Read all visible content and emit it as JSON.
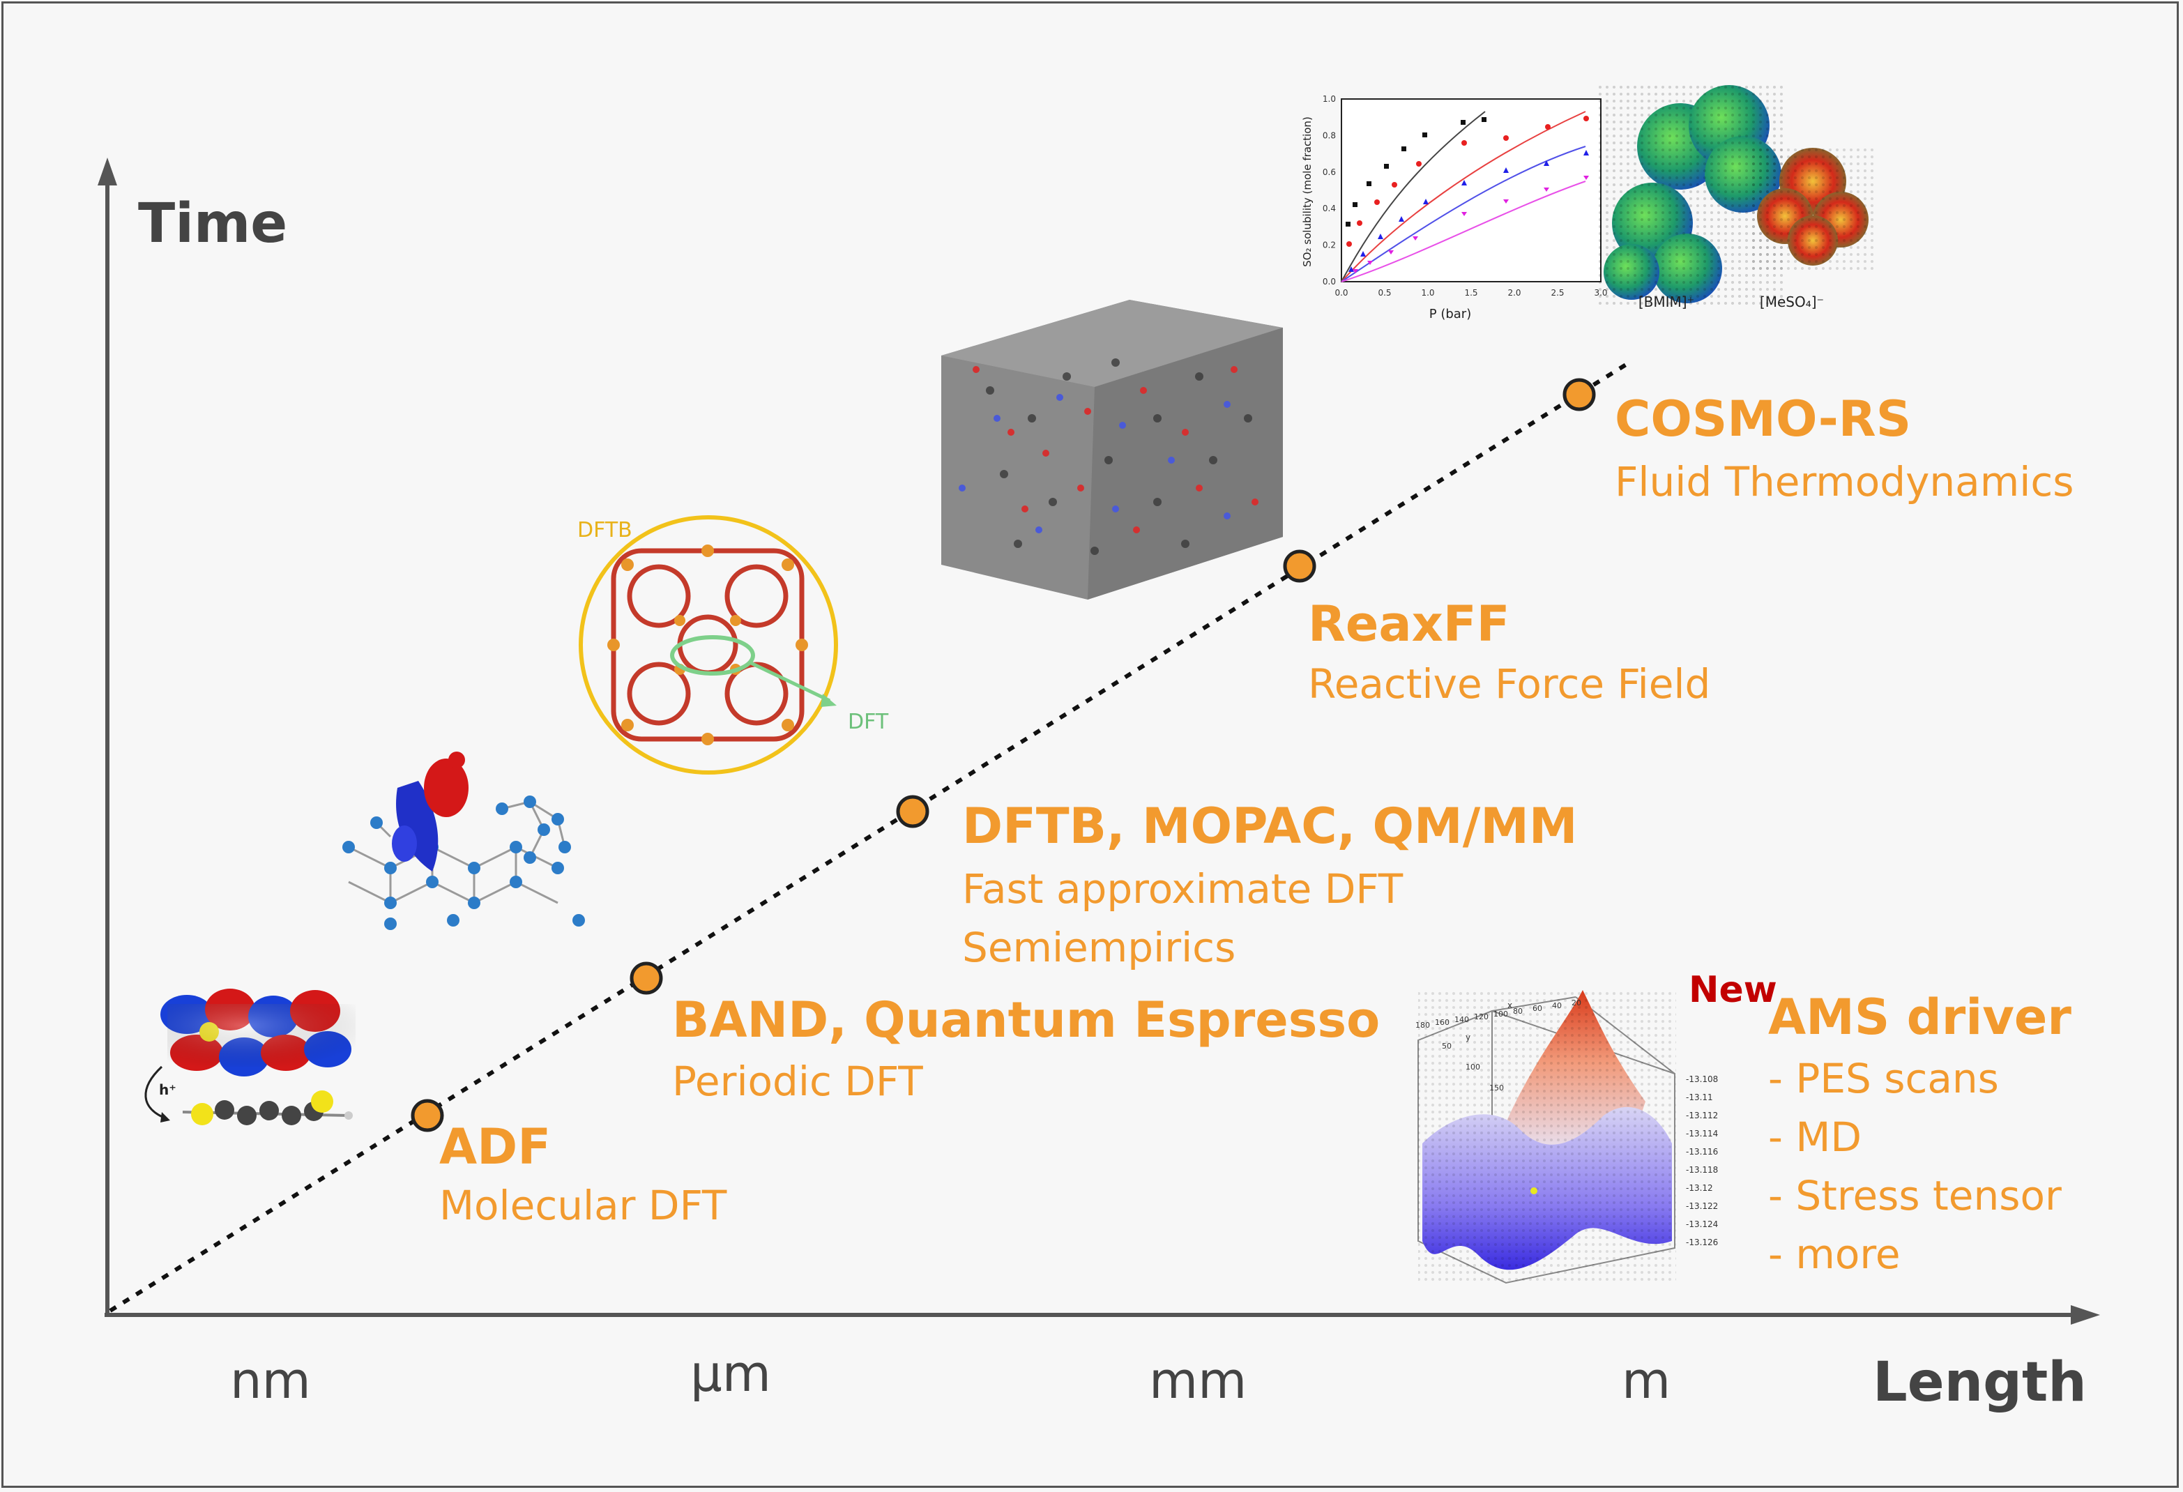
{
  "axes": {
    "y_title": "Time",
    "x_title": "Length",
    "x_ticks": [
      "nm",
      "µm",
      "mm",
      "m"
    ]
  },
  "methods": [
    {
      "name": "ADF",
      "desc": [
        "Molecular DFT"
      ]
    },
    {
      "name": "BAND, Quantum Espresso",
      "desc": [
        "Periodic DFT"
      ]
    },
    {
      "name": "DFTB, MOPAC, QM/MM",
      "desc": [
        "Fast approximate DFT",
        "Semiempirics"
      ]
    },
    {
      "name": "ReaxFF",
      "desc": [
        "Reactive Force Field"
      ]
    },
    {
      "name": "COSMO-RS",
      "desc": [
        "Fluid Thermodynamics"
      ]
    }
  ],
  "ams": {
    "new_tag": "New",
    "name": "AMS driver",
    "items": [
      "- PES scans",
      "- MD",
      "- Stress tensor",
      "- more"
    ]
  },
  "illustrations": {
    "excitation_label": "h⁺",
    "dftb_label": "DFTB",
    "dft_label": "DFT",
    "cosmo_plot": {
      "ylabel": "SO₂ solubility (mole fraction)",
      "xlabel": "P (bar)",
      "x_ticks": [
        "0.0",
        "0.5",
        "1.0",
        "1.5",
        "2.0",
        "2.5",
        "3.0"
      ],
      "y_ticks": [
        "0.0",
        "0.2",
        "0.4",
        "0.6",
        "0.8",
        "1.0"
      ],
      "molecule_labels": [
        "[BMIM]⁺",
        "[MeSO₄]⁻"
      ]
    },
    "pes_plot": {
      "z_ticks": [
        "-13.108",
        "-13.11",
        "-13.112",
        "-13.114",
        "-13.116",
        "-13.118",
        "-13.12",
        "-13.122",
        "-13.124",
        "-13.126"
      ],
      "x_ticks": [
        "180",
        "160",
        "140",
        "120",
        "100",
        "80",
        "60",
        "40",
        "20"
      ],
      "y_ticks": [
        "50",
        "100",
        "150"
      ],
      "x_axis_letter": "x",
      "y_axis_letter": "y"
    }
  },
  "colors": {
    "accent": "#f29a2e",
    "new": "#c20000",
    "axis": "#555555",
    "text_dark": "#444444"
  }
}
